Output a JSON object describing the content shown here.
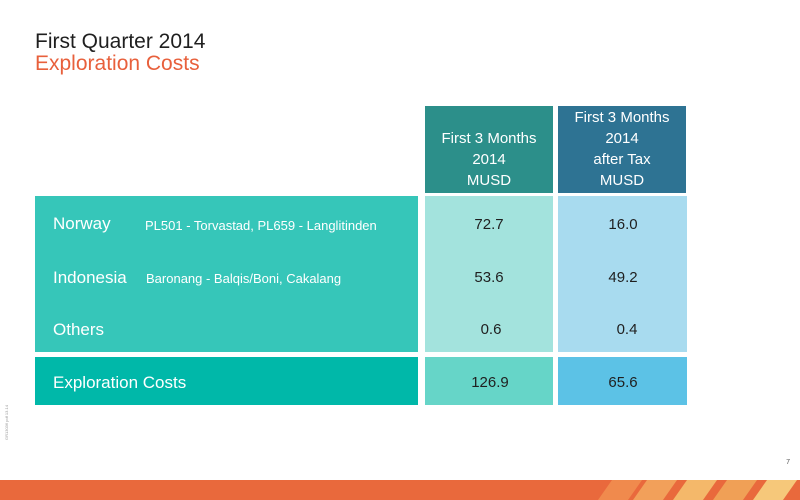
{
  "title": "First Quarter 2014",
  "subtitle": "Exploration Costs",
  "columns": [
    {
      "line1": "First 3 Months",
      "line2": "2014",
      "line3": "MUSD",
      "line4": ""
    },
    {
      "line1": "First 3 Months",
      "line2": "2014",
      "line3": "after Tax",
      "line4": "MUSD"
    }
  ],
  "rows": [
    {
      "label": "Norway",
      "detail": "PL501 - Torvastad, PL659 - Langlitinden",
      "v1": "72.7",
      "v2": "16.0"
    },
    {
      "label": "Indonesia",
      "detail": "Baronang - Balqis/Boni, Cakalang",
      "v1": "53.6",
      "v2": "49.2"
    },
    {
      "label": "Others",
      "detail": "",
      "v1": "0.6",
      "v2": "0.4"
    }
  ],
  "total": {
    "label": "Exploration Costs",
    "v1": "126.9",
    "v2": "65.6"
  },
  "page_number": "7",
  "side_note": "GR13036 pdf 13.14",
  "colors": {
    "accent": "#e8603c",
    "teal_header": "#2c8f8a",
    "blue_header": "#2e7393",
    "row_teal": "#36c6b9",
    "footer": "#e9693c"
  }
}
